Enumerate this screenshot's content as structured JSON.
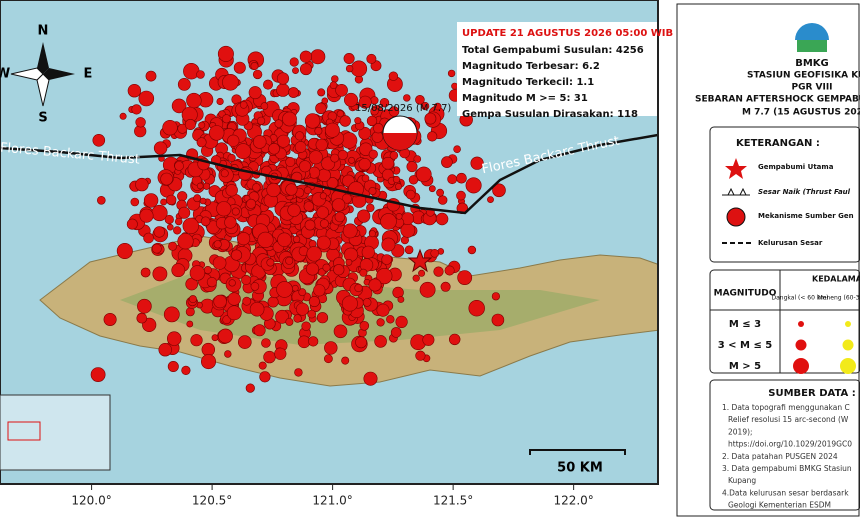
{
  "map": {
    "compass": {
      "n": "N",
      "e": "E",
      "w": "W",
      "s": "S"
    },
    "update_box": {
      "title": "UPDATE 21 AGUSTUS 2026 05:00 WIB",
      "lines": [
        "Total Gempabumi Susulan: 4256",
        "Magnitudo Terbesar: 6.2",
        "Magnitudo Terkecil: 1.1",
        "Magnitudo M >= 5: 31",
        "Gempa Susulan Dirasakan: 118"
      ]
    },
    "mainshock_label": "15/08/2026 (M 7.7)",
    "fault_labels": [
      "Flores Backarc Thrust",
      "Flores Backarc Thrust"
    ],
    "scale_label": "50 KM",
    "lon_lim": [
      119.62,
      122.35
    ],
    "lon_ticks": [
      {
        "value": 120.0,
        "label": "120.0°"
      },
      {
        "value": 120.5,
        "label": "120.5°"
      },
      {
        "value": 121.0,
        "label": "121.0°"
      },
      {
        "value": 121.5,
        "label": "121.5°"
      },
      {
        "value": 122.0,
        "label": "122.0°"
      }
    ]
  },
  "panel": {
    "logo": "BMKG",
    "station": "STASIUN GEOFISIKA KU",
    "pgr": "PGR VIII",
    "heading": "SEBARAN AFTERSHOCK GEMPABU",
    "event": "M 7.7 (15 AGUSTUS 2026",
    "legend_title": "KETERANGAN :",
    "legend": [
      "Gempabumi Utama",
      "Sesar Naik (Thrust Faul",
      "Mekanisme Sumber Gen",
      "Kelurusan Sesar"
    ],
    "depth_title": "KEDALAMA",
    "magnitude_title": "MAGNITUDO",
    "depth_cols": [
      "Dangkal\n(< 60 km)",
      "Meneng\n(60-300 km"
    ],
    "mag_rows": [
      "M ≤ 3",
      "3 < M ≤ 5",
      "M > 5"
    ],
    "source_title": "SUMBER DATA :",
    "sources": [
      "1. Data topografi menggunakan C",
      "Relief resolusi 15 arc-second (W",
      "2019);",
      "https://doi.org/10.1029/2019GC0",
      "2. Data patahan PUSGEN 2024",
      "3. Data gempabumi BMKG Stasiun",
      "Kupang",
      "4.Data kelurusan sesar berdasark",
      "Geologi Kementerian ESDM"
    ]
  }
}
